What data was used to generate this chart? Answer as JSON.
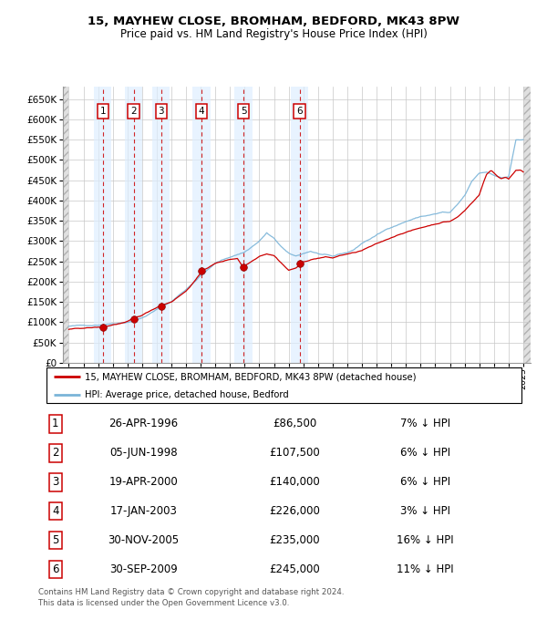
{
  "title": "15, MAYHEW CLOSE, BROMHAM, BEDFORD, MK43 8PW",
  "subtitle": "Price paid vs. HM Land Registry's House Price Index (HPI)",
  "footer_line1": "Contains HM Land Registry data © Crown copyright and database right 2024.",
  "footer_line2": "This data is licensed under the Open Government Licence v3.0.",
  "legend_label_red": "15, MAYHEW CLOSE, BROMHAM, BEDFORD, MK43 8PW (detached house)",
  "legend_label_blue": "HPI: Average price, detached house, Bedford",
  "transactions": [
    {
      "num": 1,
      "date": "26-APR-1996",
      "price": 86500,
      "pct": "7%",
      "year": 1996.32
    },
    {
      "num": 2,
      "date": "05-JUN-1998",
      "price": 107500,
      "pct": "6%",
      "year": 1998.43
    },
    {
      "num": 3,
      "date": "19-APR-2000",
      "price": 140000,
      "pct": "6%",
      "year": 2000.3
    },
    {
      "num": 4,
      "date": "17-JAN-2003",
      "price": 226000,
      "pct": "3%",
      "year": 2003.05
    },
    {
      "num": 5,
      "date": "30-NOV-2005",
      "price": 235000,
      "pct": "16%",
      "year": 2005.92
    },
    {
      "num": 6,
      "date": "30-SEP-2009",
      "price": 245000,
      "pct": "11%",
      "year": 2009.75
    }
  ],
  "hpi_color": "#7ab4d8",
  "price_color": "#cc0000",
  "ylim": [
    0,
    680000
  ],
  "yticks": [
    0,
    50000,
    100000,
    150000,
    200000,
    250000,
    300000,
    350000,
    400000,
    450000,
    500000,
    550000,
    600000,
    650000
  ],
  "xmin": 1994.0,
  "xmax": 2025.5
}
